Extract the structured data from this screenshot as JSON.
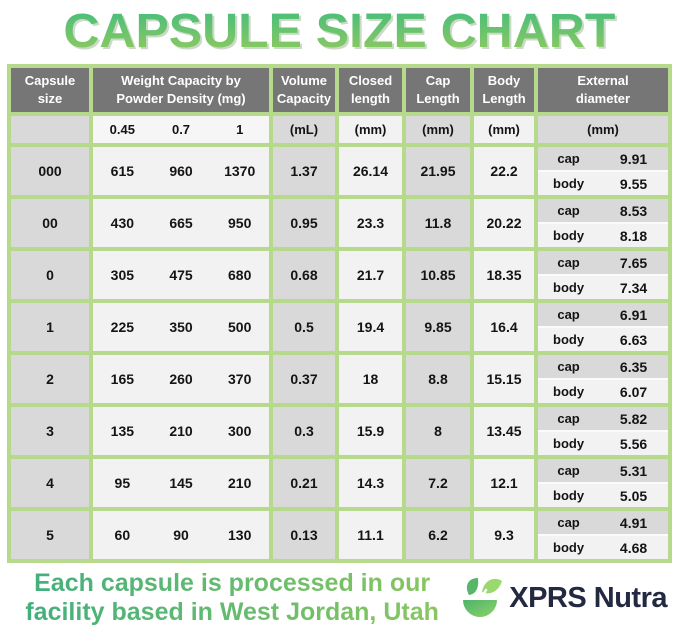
{
  "title": "CAPSULE SIZE CHART",
  "table": {
    "header": {
      "capsule_size": "Capsule size",
      "weight_line1": "Weight Capacity by",
      "weight_line2": "Powder Density (mg)",
      "volume_line1": "Volume",
      "volume_line2": "Capacity",
      "closed_line1": "Closed",
      "closed_line2": "length",
      "cap_line1": "Cap",
      "cap_line2": "Length",
      "body_line1": "Body",
      "body_line2": "Length",
      "external_line1": "External",
      "external_line2": "diameter"
    },
    "subheader": {
      "density_045": "0.45",
      "density_07": "0.7",
      "density_1": "1",
      "volume_unit": "(mL)",
      "closed_unit": "(mm)",
      "cap_unit": "(mm)",
      "body_unit": "(mm)",
      "external_unit": "(mm)"
    },
    "rows": [
      {
        "size": "000",
        "w045": "615",
        "w07": "960",
        "w1": "1370",
        "volume": "1.37",
        "closed": "26.14",
        "cap_length": "21.95",
        "body_length": "22.2",
        "cap_label": "cap",
        "cap_diameter": "9.91",
        "body_label": "body",
        "body_diameter": "9.55"
      },
      {
        "size": "00",
        "w045": "430",
        "w07": "665",
        "w1": "950",
        "volume": "0.95",
        "closed": "23.3",
        "cap_length": "11.8",
        "body_length": "20.22",
        "cap_label": "cap",
        "cap_diameter": "8.53",
        "body_label": "body",
        "body_diameter": "8.18"
      },
      {
        "size": "0",
        "w045": "305",
        "w07": "475",
        "w1": "680",
        "volume": "0.68",
        "closed": "21.7",
        "cap_length": "10.85",
        "body_length": "18.35",
        "cap_label": "cap",
        "cap_diameter": "7.65",
        "body_label": "body",
        "body_diameter": "7.34"
      },
      {
        "size": "1",
        "w045": "225",
        "w07": "350",
        "w1": "500",
        "volume": "0.5",
        "closed": "19.4",
        "cap_length": "9.85",
        "body_length": "16.4",
        "cap_label": "cap",
        "cap_diameter": "6.91",
        "body_label": "body",
        "body_diameter": "6.63"
      },
      {
        "size": "2",
        "w045": "165",
        "w07": "260",
        "w1": "370",
        "volume": "0.37",
        "closed": "18",
        "cap_length": "8.8",
        "body_length": "15.15",
        "cap_label": "cap",
        "cap_diameter": "6.35",
        "body_label": "body",
        "body_diameter": "6.07"
      },
      {
        "size": "3",
        "w045": "135",
        "w07": "210",
        "w1": "300",
        "volume": "0.3",
        "closed": "15.9",
        "cap_length": "8",
        "body_length": "13.45",
        "cap_label": "cap",
        "cap_diameter": "5.82",
        "body_label": "body",
        "body_diameter": "5.56"
      },
      {
        "size": "4",
        "w045": "95",
        "w07": "145",
        "w1": "210",
        "volume": "0.21",
        "closed": "14.3",
        "cap_length": "7.2",
        "body_length": "12.1",
        "cap_label": "cap",
        "cap_diameter": "5.31",
        "body_label": "body",
        "body_diameter": "5.05"
      },
      {
        "size": "5",
        "w045": "60",
        "w07": "90",
        "w1": "130",
        "volume": "0.13",
        "closed": "11.1",
        "cap_length": "6.2",
        "body_length": "9.3",
        "cap_label": "cap",
        "cap_diameter": "4.91",
        "body_label": "body",
        "body_diameter": "4.68"
      }
    ]
  },
  "footer": {
    "note_line1": "Each capsule is processed in our",
    "note_line2": "facility based in West Jordan, Utah",
    "brand": "XPRS Nutra"
  },
  "colors": {
    "border_green": "#b6d98c",
    "header_gray": "#767676",
    "cell_gray": "#d9d9d9",
    "cell_light": "#f2f2f2",
    "title_gradient_start": "#45bd7c",
    "title_gradient_end": "#93ca5e",
    "footer_gradient_start": "#3fae7e",
    "footer_gradient_end": "#8cc75f",
    "brand_navy": "#232940"
  },
  "chart_data": {
    "type": "table",
    "title": "CAPSULE SIZE CHART",
    "columns": [
      "Capsule size",
      "Weight Capacity at 0.45 powder density (mg)",
      "Weight Capacity at 0.7 powder density (mg)",
      "Weight Capacity at 1 powder density (mg)",
      "Volume Capacity (mL)",
      "Closed length (mm)",
      "Cap Length (mm)",
      "Body Length (mm)",
      "External diameter cap (mm)",
      "External diameter body (mm)"
    ],
    "rows": [
      [
        "000",
        615,
        960,
        1370,
        1.37,
        26.14,
        21.95,
        22.2,
        9.91,
        9.55
      ],
      [
        "00",
        430,
        665,
        950,
        0.95,
        23.3,
        11.8,
        20.22,
        8.53,
        8.18
      ],
      [
        "0",
        305,
        475,
        680,
        0.68,
        21.7,
        10.85,
        18.35,
        7.65,
        7.34
      ],
      [
        "1",
        225,
        350,
        500,
        0.5,
        19.4,
        9.85,
        16.4,
        6.91,
        6.63
      ],
      [
        "2",
        165,
        260,
        370,
        0.37,
        18,
        8.8,
        15.15,
        6.35,
        6.07
      ],
      [
        "3",
        135,
        210,
        300,
        0.3,
        15.9,
        8,
        13.45,
        5.82,
        5.56
      ],
      [
        "4",
        95,
        145,
        210,
        0.21,
        14.3,
        7.2,
        12.1,
        5.31,
        5.05
      ],
      [
        "5",
        60,
        90,
        130,
        0.13,
        11.1,
        6.2,
        9.3,
        4.91,
        4.68
      ]
    ]
  }
}
